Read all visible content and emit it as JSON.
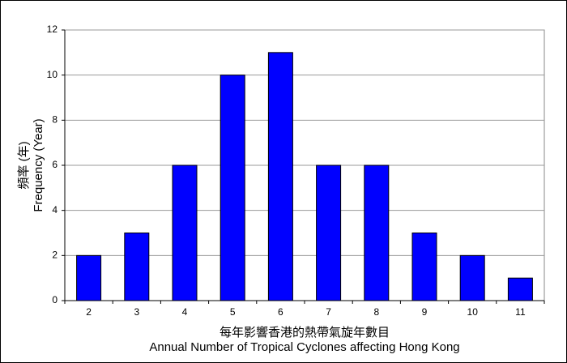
{
  "chart_data": {
    "type": "bar",
    "xlabel": [
      "每年影響香港的熱帶氣旋年數目",
      "Annual Number of Tropical Cyclones affecting Hong Kong"
    ],
    "ylabel": [
      "頻率 (年)",
      "Frequency (Year)"
    ],
    "categories": [
      "2",
      "3",
      "4",
      "5",
      "6",
      "7",
      "8",
      "9",
      "10",
      "11"
    ],
    "values": [
      2,
      3,
      6,
      10,
      11,
      6,
      6,
      3,
      2,
      1
    ],
    "color": "#0000ff",
    "ylim": [
      0,
      12
    ],
    "yticks": [
      0,
      2,
      4,
      6,
      8,
      10,
      12
    ],
    "grid": true
  }
}
